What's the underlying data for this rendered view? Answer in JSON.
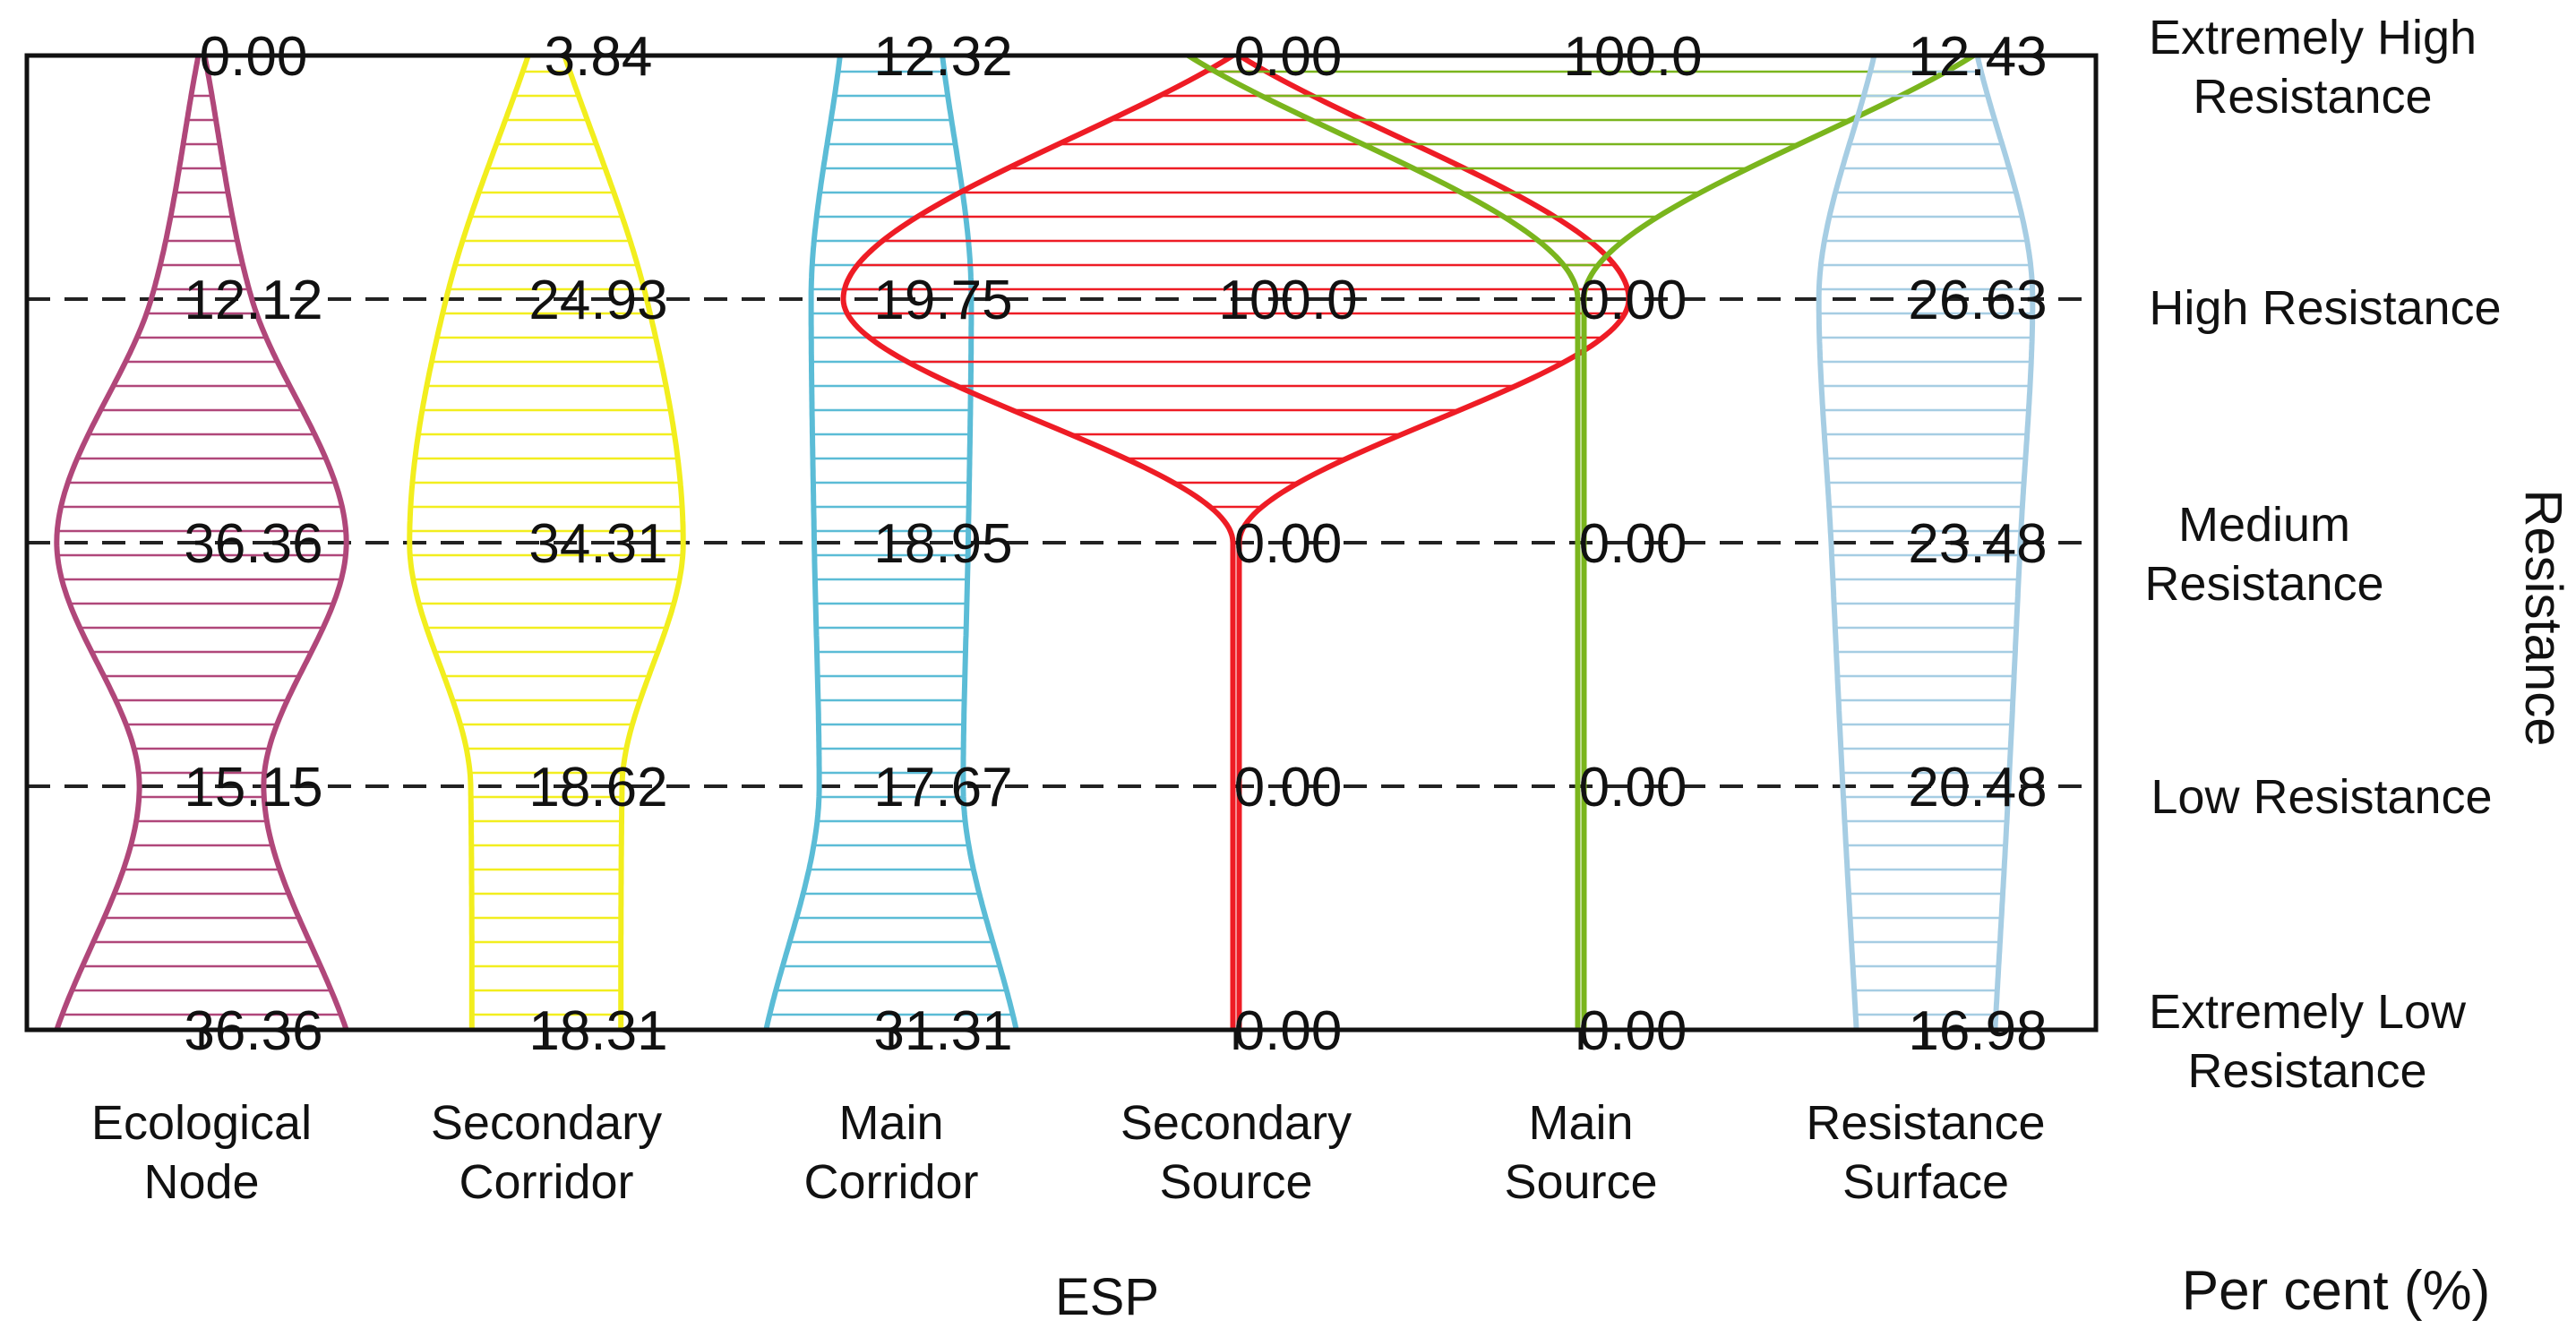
{
  "chart_data": {
    "type": "violin",
    "xlabel": "ESP",
    "ylabel": "Resistance",
    "units_label": "Per cent (%)",
    "levels": [
      "Extremely High Resistance",
      "High Resistance",
      "Medium Resistance",
      "Low Resistance",
      "Extremely Low Resistance"
    ],
    "categories": [
      "Ecological Node",
      "Secondary Corridor",
      "Main Corridor",
      "Secondary Source",
      "Main Source",
      "Resistance Surface"
    ],
    "series": [
      {
        "name": "Ecological Node",
        "color": "#b0477a",
        "values": [
          0.0,
          12.12,
          36.36,
          15.15,
          36.36
        ],
        "labels": [
          "0.00",
          "12.12",
          "36.36",
          "15.15",
          "36.36"
        ]
      },
      {
        "name": "Secondary Corridor",
        "color": "#f2ee1e",
        "values": [
          3.84,
          24.93,
          34.31,
          18.62,
          18.31
        ],
        "labels": [
          "3.84",
          "24.93",
          "34.31",
          "18.62",
          "18.31"
        ]
      },
      {
        "name": "Main Corridor",
        "color": "#5bbcd6",
        "values": [
          12.32,
          19.75,
          18.95,
          17.67,
          31.31
        ],
        "labels": [
          "12.32",
          "19.75",
          "18.95",
          "17.67",
          "31.31"
        ]
      },
      {
        "name": "Secondary Source",
        "color": "#ee1c25",
        "values": [
          0.0,
          100.0,
          0.0,
          0.0,
          0.0
        ],
        "labels": [
          "0.00",
          "100.0",
          "0.00",
          "0.00",
          "0.00"
        ]
      },
      {
        "name": "Main Source",
        "color": "#7ab51d",
        "values": [
          100.0,
          0.0,
          0.0,
          0.0,
          0.0
        ],
        "labels": [
          "100.0",
          "0.00",
          "0.00",
          "0.00",
          "0.00"
        ]
      },
      {
        "name": "Resistance Surface",
        "color": "#a6cde3",
        "values": [
          12.43,
          26.63,
          23.48,
          20.48,
          16.98
        ],
        "labels": [
          "12.43",
          "26.63",
          "23.48",
          "20.48",
          "16.98"
        ]
      }
    ],
    "grid": "dashed lines at level boundaries"
  }
}
